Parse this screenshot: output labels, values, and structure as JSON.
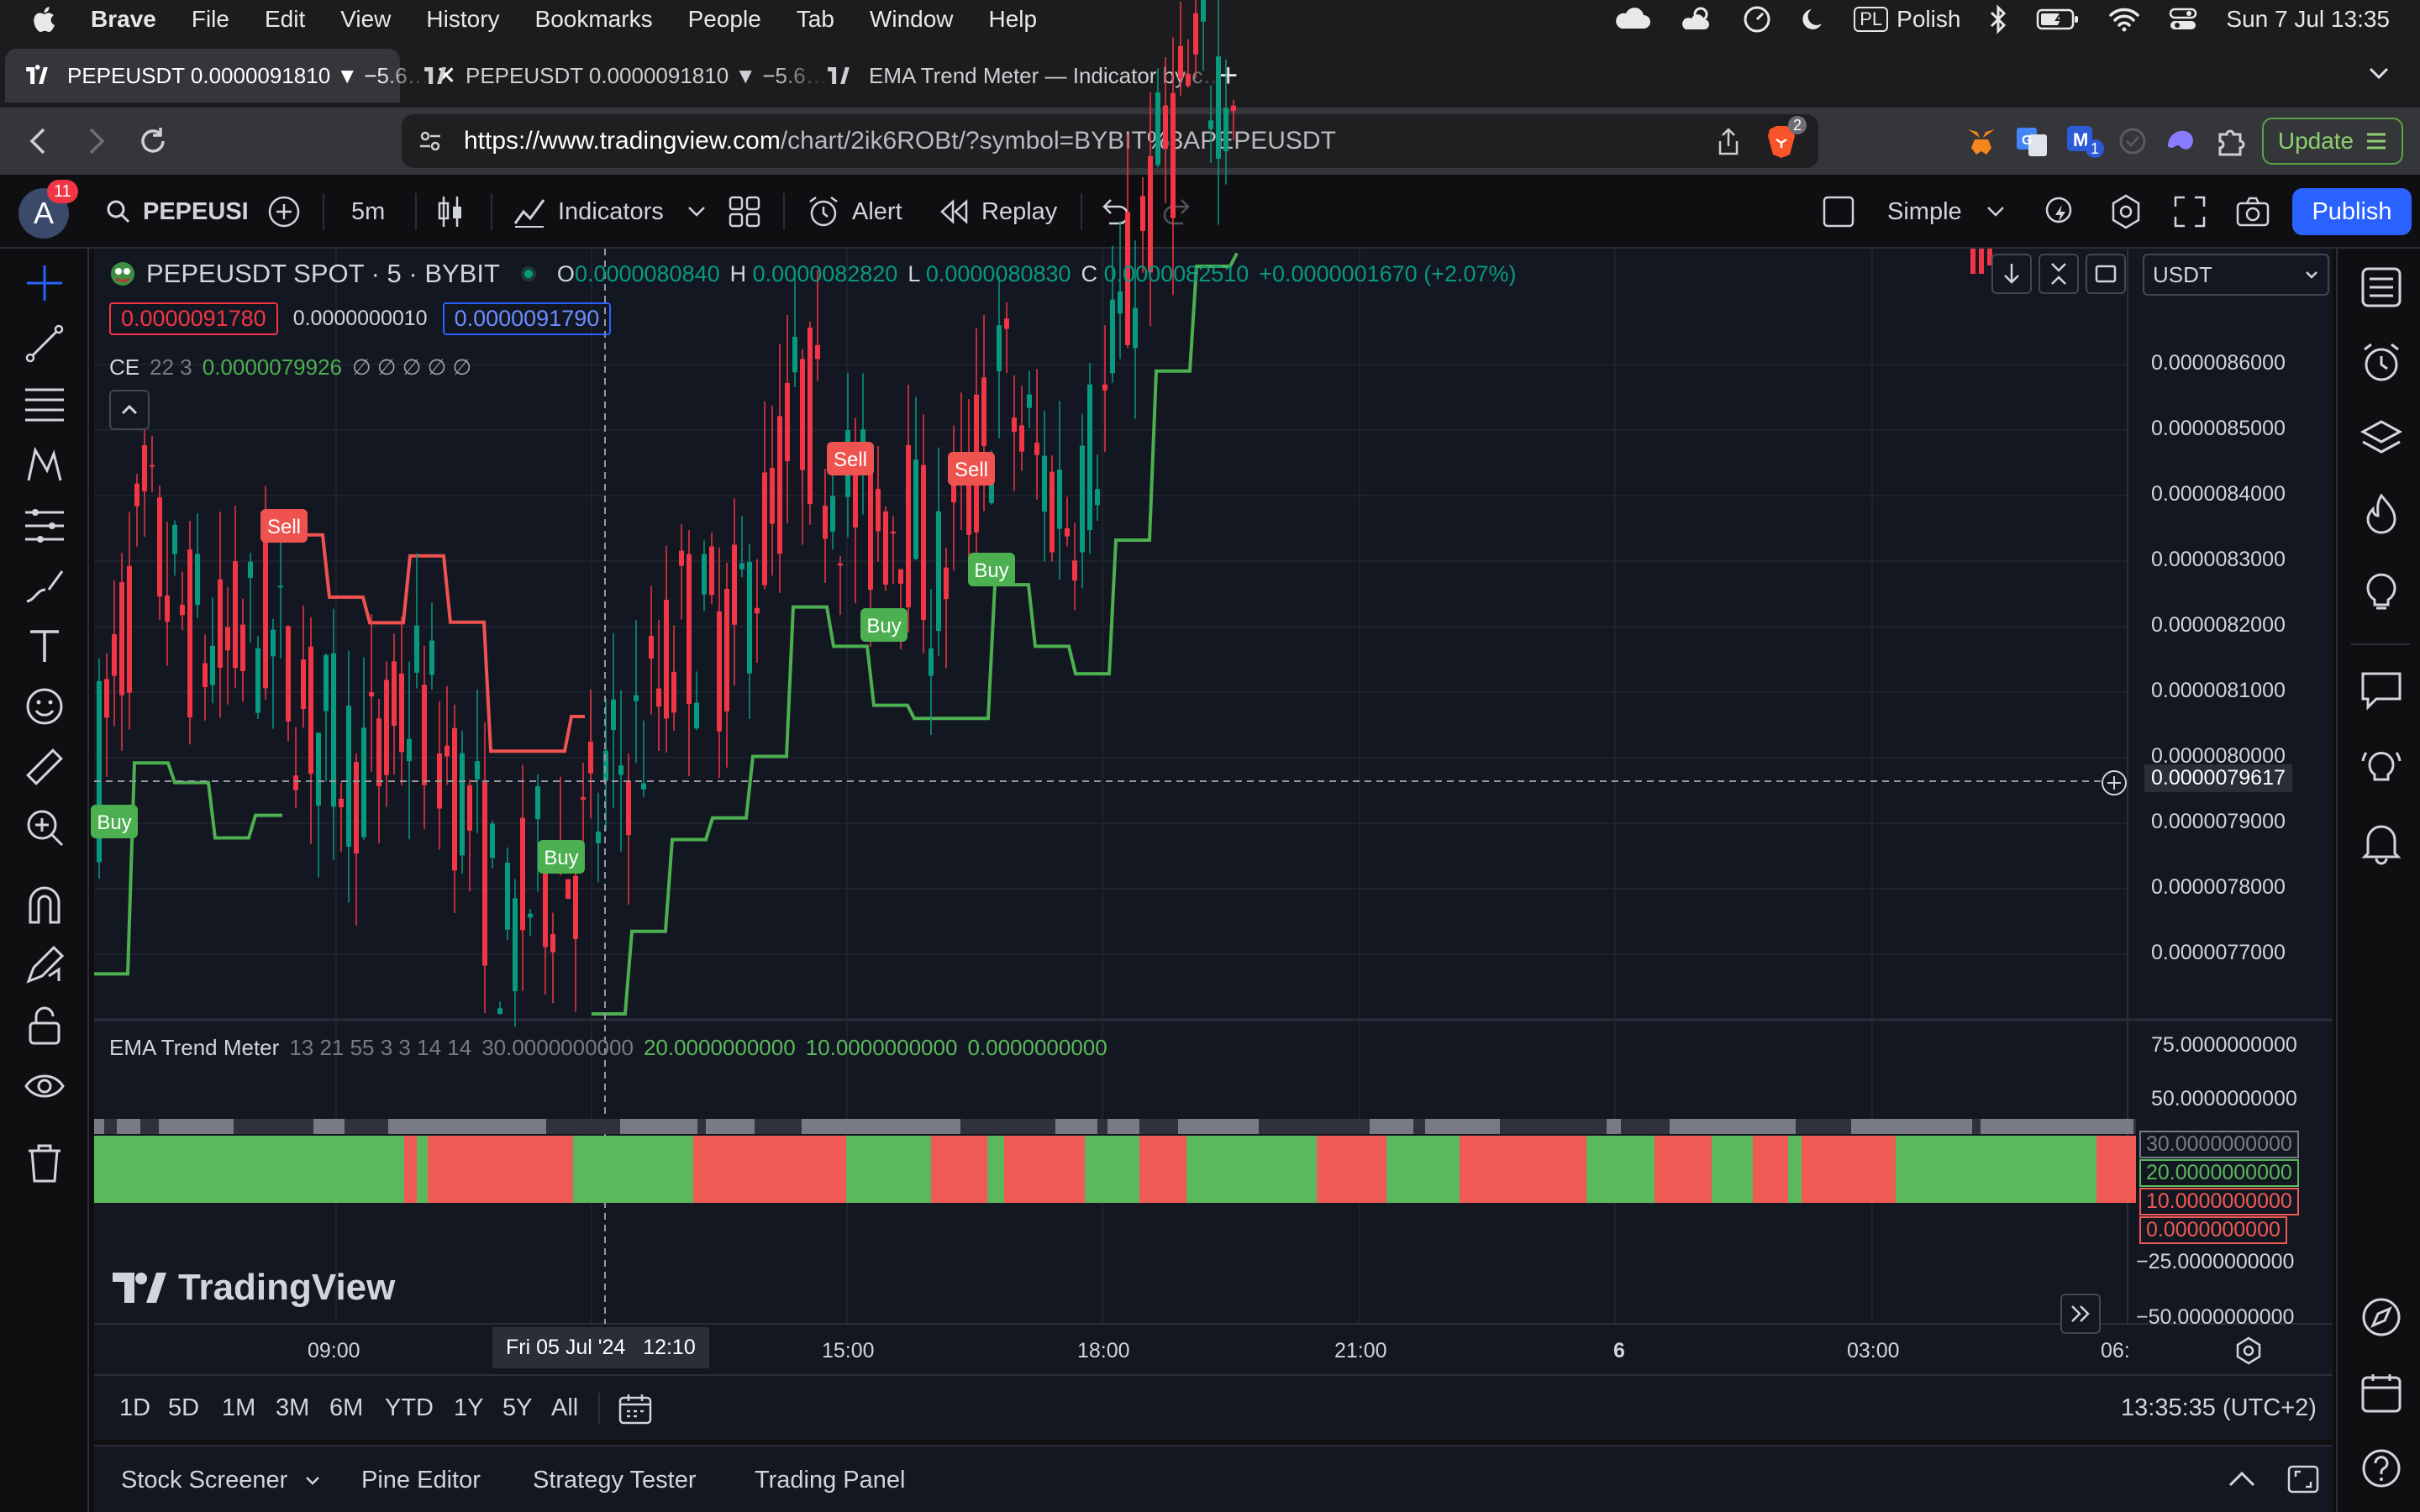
{
  "menubar": {
    "items": [
      "Brave",
      "File",
      "Edit",
      "View",
      "History",
      "Bookmarks",
      "People",
      "Tab",
      "Window",
      "Help"
    ],
    "input_source_badge": "PL",
    "input_source": "Polish",
    "datetime": "Sun 7 Jul  13:35"
  },
  "browser": {
    "tabs": [
      {
        "label": "PEPEUSDT 0.0000091810 ▼ −5.6…"
      },
      {
        "label": "PEPEUSDT 0.0000091810 ▼ −5.6…"
      },
      {
        "label": "EMA Trend Meter — Indicator by c…"
      }
    ],
    "url_host": "https://www.tradingview.com",
    "url_path": "/chart/2ik6ROBt/?symbol=BYBIT%3APEPEUSDT",
    "brave_shield_count": "2",
    "ext_badge": "1",
    "update_label": "Update"
  },
  "tv_toolbar": {
    "avatar_letter": "A",
    "avatar_badge": "11",
    "symbol": "PEPEUSI",
    "interval": "5m",
    "indicators": "Indicators",
    "alert": "Alert",
    "replay": "Replay",
    "layout": "Simple",
    "publish": "Publish"
  },
  "legend": {
    "title": "PEPEUSDT SPOT · 5 · BYBIT",
    "o_label": "O",
    "o_value": "0.0000080840",
    "h_label": "H",
    "h_value": "0.0000082820",
    "l_label": "L",
    "l_value": "0.0000080830",
    "c_label": "C",
    "c_value": "0.0000082510",
    "change": "+0.0000001670 (+2.07%)",
    "bid": "0.0000091780",
    "spread": "0.0000000010",
    "ask": "0.0000091790",
    "ce_name": "CE",
    "ce_params": "22 3",
    "ce_value": "0.0000079926",
    "ce_nulls": "∅ ∅ ∅ ∅ ∅"
  },
  "currency": "USDT",
  "price_axis": {
    "ticks": [
      {
        "label": "0.0000086000",
        "value": 8.6e-06
      },
      {
        "label": "0.0000085000",
        "value": 8.5e-06
      },
      {
        "label": "0.0000084000",
        "value": 8.4e-06
      },
      {
        "label": "0.0000083000",
        "value": 8.3e-06
      },
      {
        "label": "0.0000082000",
        "value": 8.2e-06
      },
      {
        "label": "0.0000081000",
        "value": 8.1e-06
      },
      {
        "label": "0.0000080000",
        "value": 8e-06
      },
      {
        "label": "0.0000079000",
        "value": 7.9e-06
      },
      {
        "label": "0.0000078000",
        "value": 7.8e-06
      },
      {
        "label": "0.0000077000",
        "value": 7.7e-06
      }
    ],
    "crosshair": "0.0000079617"
  },
  "ema_pane": {
    "title": "EMA Trend Meter",
    "params": "13 21 55 3 3 14 14",
    "v1": "30.0000000000",
    "v2": "20.0000000000",
    "v3": "10.0000000000",
    "v4": "0.0000000000",
    "axis": [
      "75.0000000000",
      "50.0000000000",
      "30.0000000000",
      "20.0000000000",
      "10.0000000000",
      "0.0000000000",
      "−25.0000000000",
      "−50.0000000000"
    ]
  },
  "signals": [
    {
      "label": "Sell",
      "type": "sell"
    },
    {
      "label": "Sell",
      "type": "sell"
    },
    {
      "label": "Sell",
      "type": "sell"
    },
    {
      "label": "Buy",
      "type": "buy"
    },
    {
      "label": "Buy",
      "type": "buy"
    },
    {
      "label": "Buy",
      "type": "buy"
    },
    {
      "label": "Buy",
      "type": "buy"
    }
  ],
  "time_axis": {
    "labels": [
      "09:00",
      "15:00",
      "18:00",
      "21:00",
      "6",
      "03:00",
      "06:"
    ],
    "crosshair": "Fri 05 Jul '24   12:10"
  },
  "logo": "TradingView",
  "ranges": [
    "1D",
    "5D",
    "1M",
    "3M",
    "6M",
    "YTD",
    "1Y",
    "5Y",
    "All"
  ],
  "clock": "13:35:35 (UTC+2)",
  "bottom_tabs": [
    "Stock Screener",
    "Pine Editor",
    "Strategy Tester",
    "Trading Panel"
  ],
  "colors": {
    "bg": "#131722",
    "up": "#089981",
    "down": "#f23645",
    "stop_up": "#4caf50",
    "stop_down": "#ef5350",
    "ema_green": "#5cb85c",
    "ema_red": "#f05a55",
    "ema_grey": "#787b86"
  }
}
